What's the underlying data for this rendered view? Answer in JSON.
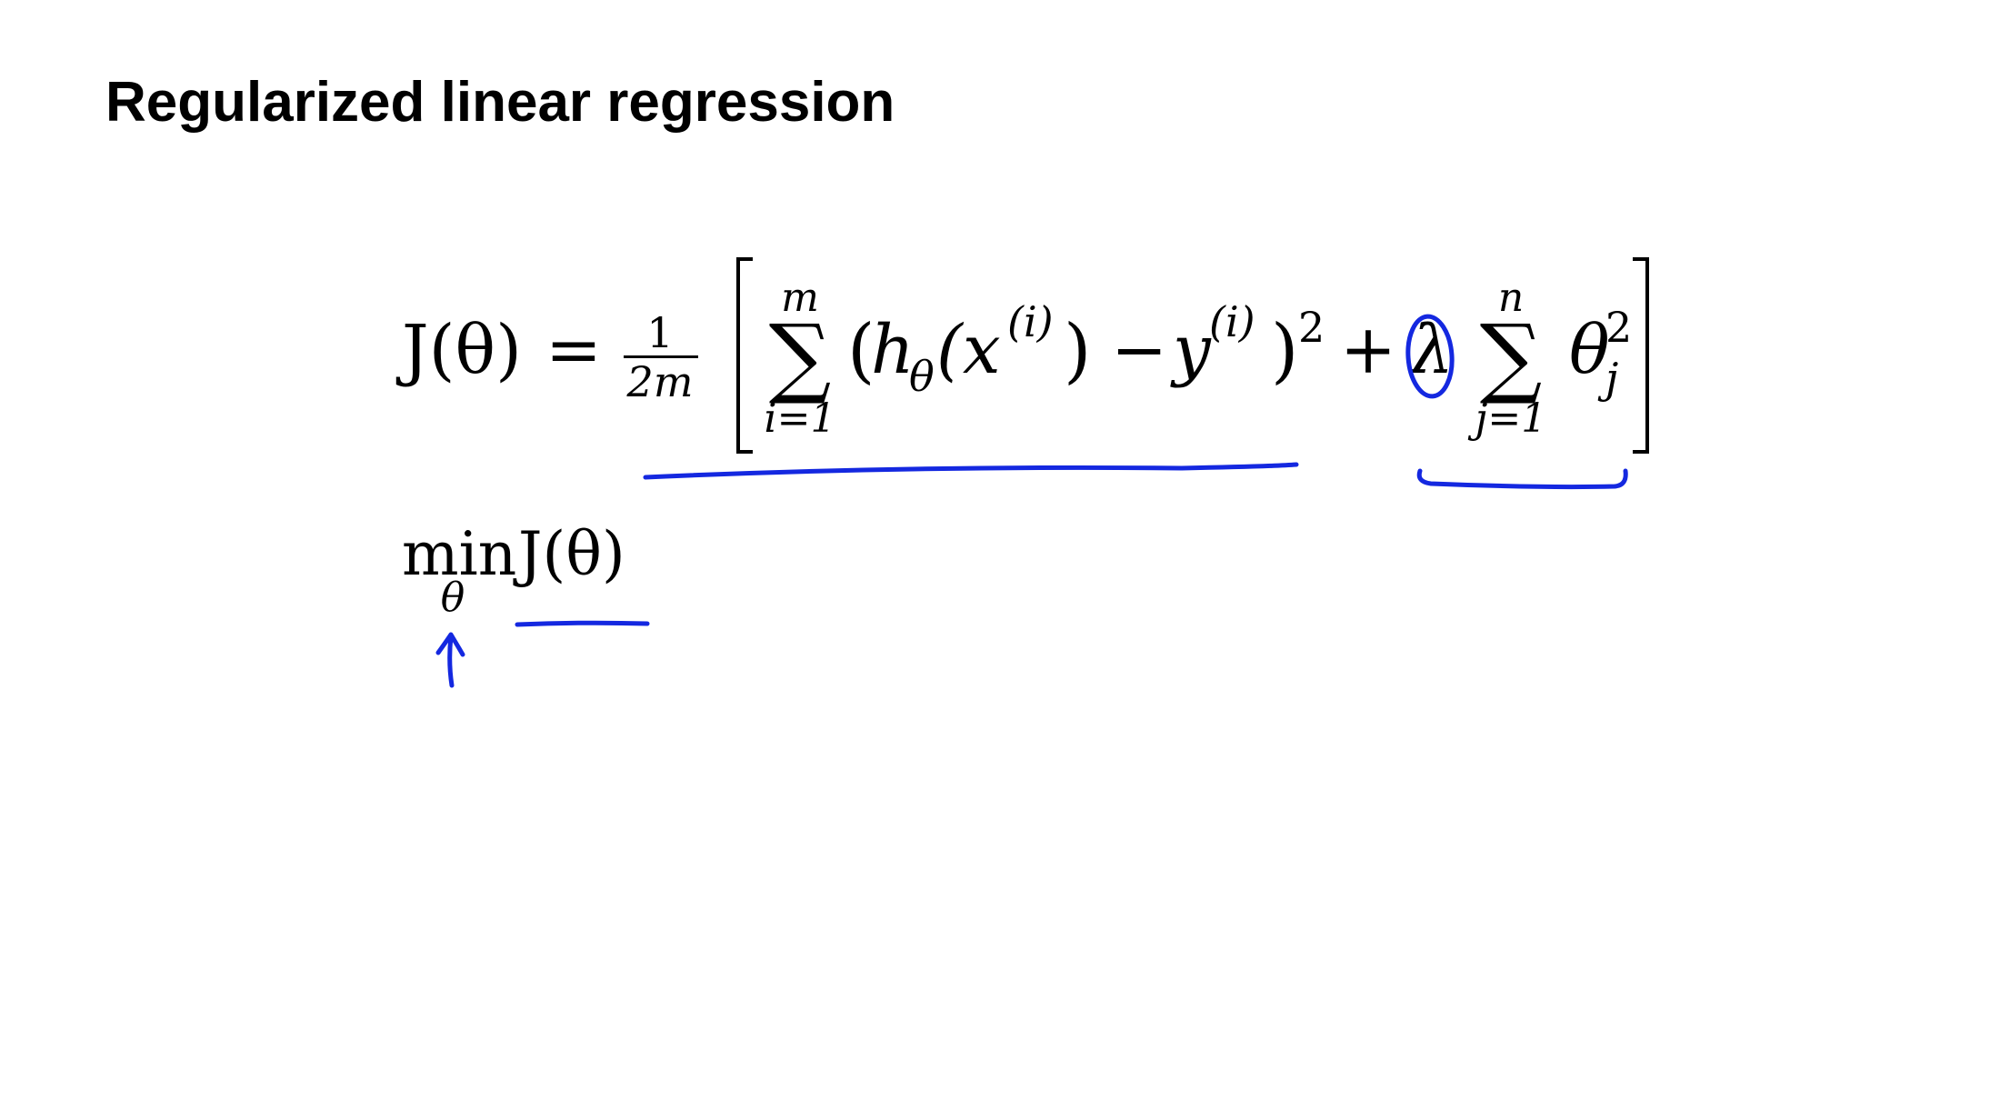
{
  "slide": {
    "title": "Regularized linear regression"
  },
  "cost_equation": {
    "lhs": "J(θ)",
    "equals": "=",
    "fraction_numerator": "1",
    "fraction_denominator": "2m",
    "left_bracket": "[",
    "sum1_symbol": "∑",
    "sum1_upper": "m",
    "sum1_lower": "i=1",
    "open_paren": "(",
    "h": "h",
    "h_subscript": "θ",
    "x_arg": "(x",
    "x_superscript": "(i)",
    "x_close": ")",
    "minus": "−",
    "y": "y",
    "y_superscript": "(i)",
    "close_paren": ")",
    "square_exponent": "2",
    "plus": "+",
    "lambda": "λ",
    "sum2_symbol": "∑",
    "sum2_upper": "n",
    "sum2_lower": "j=1",
    "theta": "θ",
    "theta_superscript": "2",
    "theta_subscript": "j",
    "right_bracket": "]"
  },
  "objective": {
    "min": "min",
    "min_subscript": "θ",
    "function": "J(θ)"
  },
  "ink_color": "#1428e0"
}
